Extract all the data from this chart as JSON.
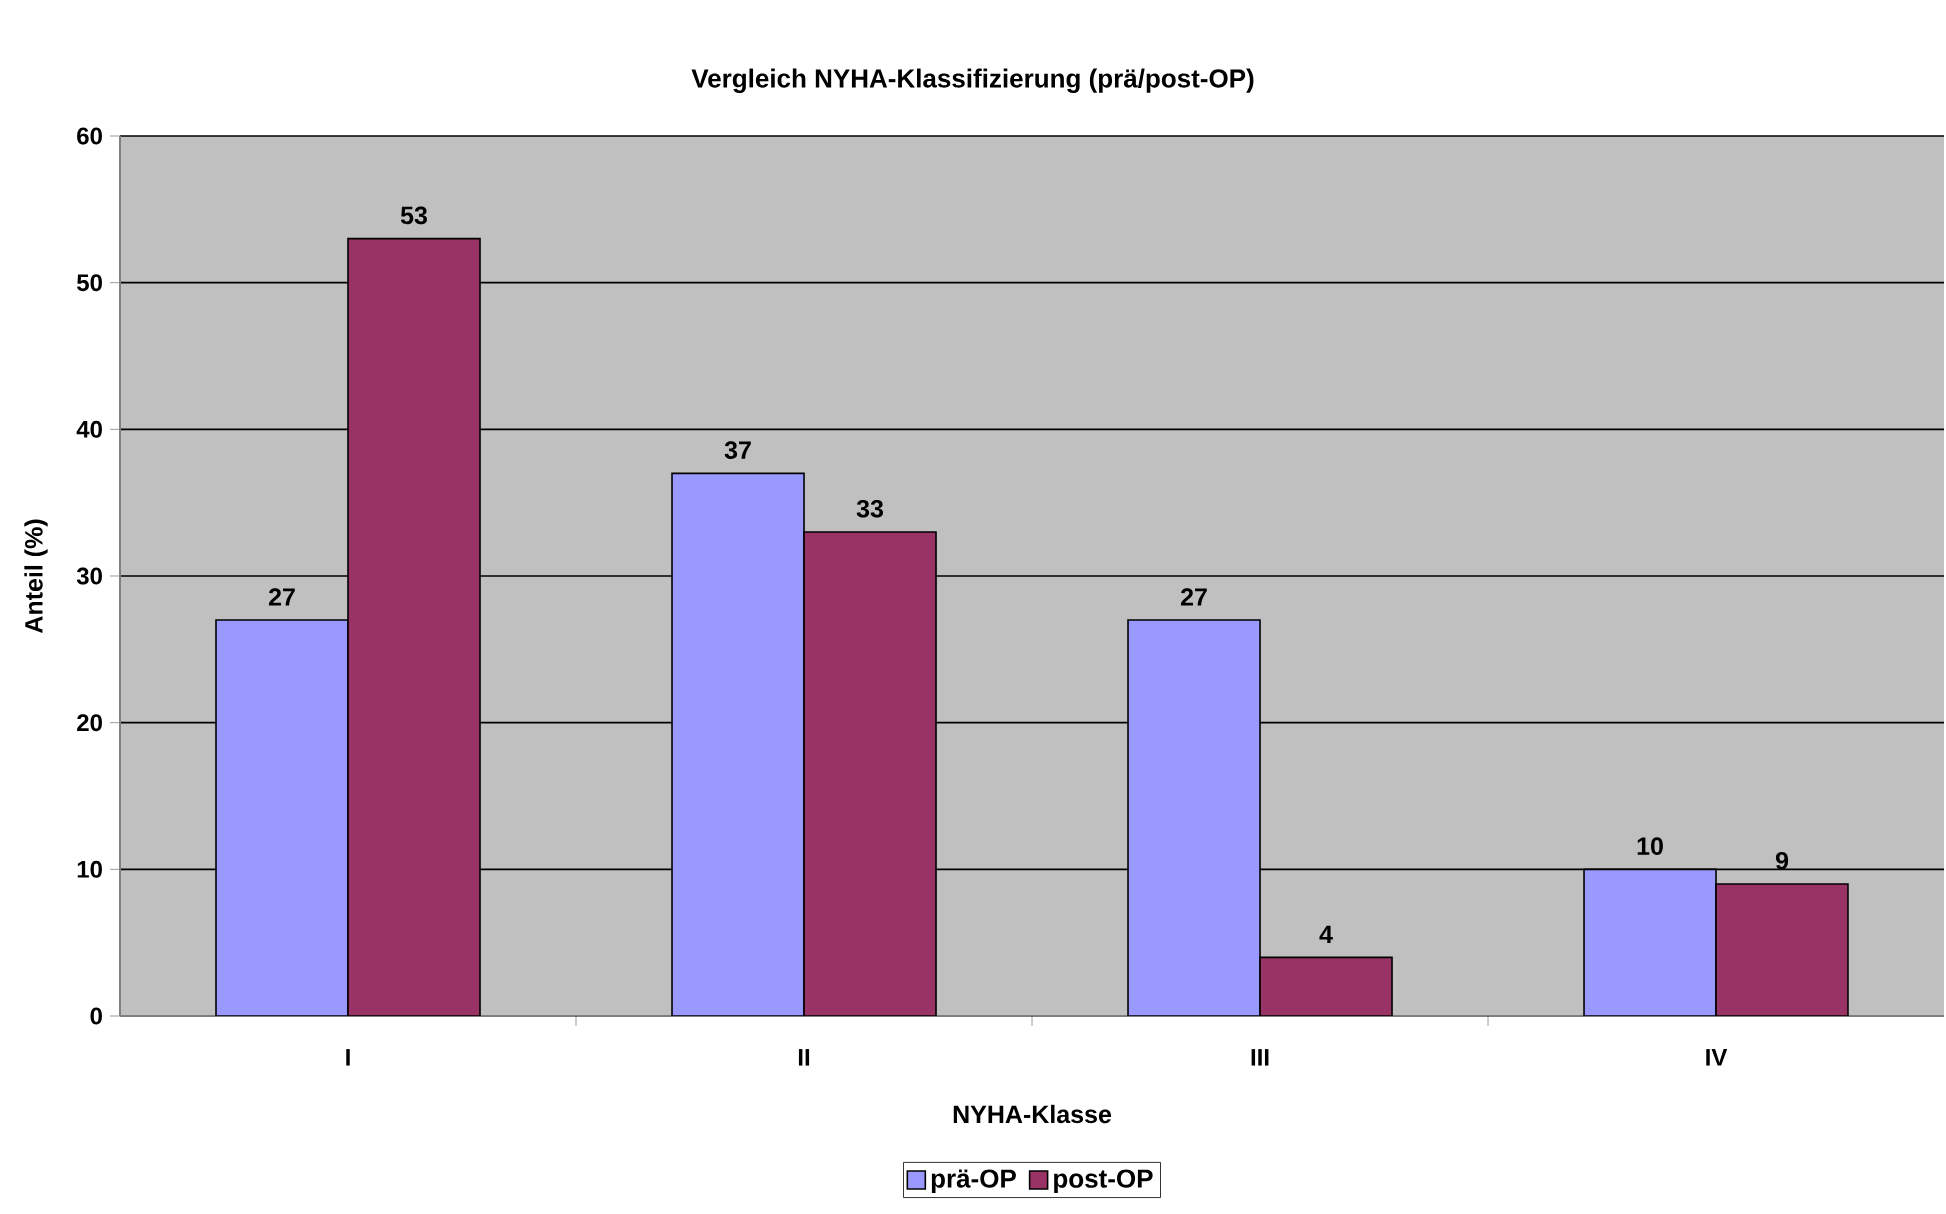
{
  "chart_data": {
    "type": "bar",
    "title": "Vergleich NYHA-Klassifizierung (prä/post-OP)",
    "xlabel": "NYHA-Klasse",
    "ylabel": "Anteil (%)",
    "categories": [
      "I",
      "II",
      "III",
      "IV"
    ],
    "series": [
      {
        "name": "prä-OP",
        "color": "#9999ff",
        "values": [
          27,
          37,
          27,
          10
        ]
      },
      {
        "name": "post-OP",
        "color": "#993366",
        "values": [
          53,
          33,
          4,
          9
        ]
      }
    ],
    "ylim": [
      0,
      60
    ],
    "yticks": [
      0,
      10,
      20,
      30,
      40,
      50,
      60
    ],
    "grid": "y",
    "legend": "bottom",
    "data_labels": true
  }
}
